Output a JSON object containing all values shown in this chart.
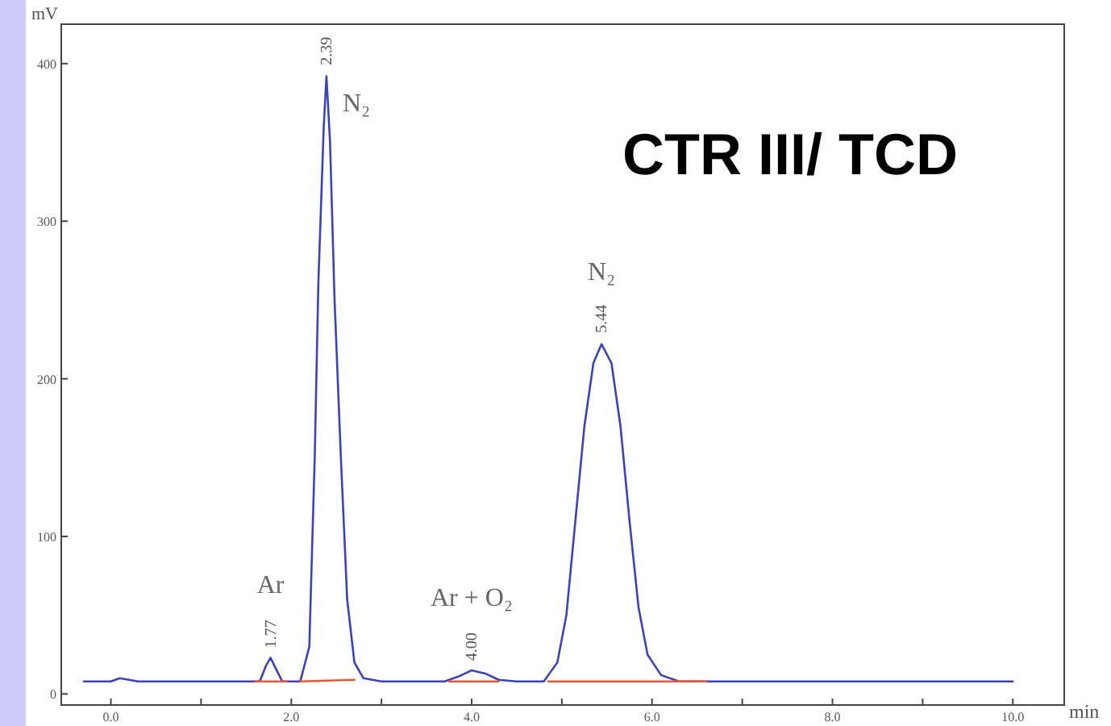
{
  "chart_data": {
    "type": "line",
    "title": "CTR III/ TCD",
    "xlabel": "min",
    "ylabel": "mV",
    "xlim": [
      -0.55,
      10.57
    ],
    "ylim": [
      -7,
      425
    ],
    "xticks": [
      {
        "value": 0,
        "label": "0.0"
      },
      {
        "value": 1,
        "label": null
      },
      {
        "value": 2,
        "label": "2.0"
      },
      {
        "value": 3,
        "label": null
      },
      {
        "value": 4,
        "label": "4.0"
      },
      {
        "value": 5,
        "label": null
      },
      {
        "value": 6,
        "label": "6.0"
      },
      {
        "value": 7,
        "label": null
      },
      {
        "value": 8,
        "label": "8.0"
      },
      {
        "value": 9,
        "label": null
      },
      {
        "value": 10,
        "label": "10.0"
      }
    ],
    "yticks": [
      0,
      100,
      200,
      300,
      400
    ],
    "grid": false,
    "marker": "none",
    "line_style": "solid",
    "series": [
      {
        "color": "#3a44b8",
        "x": [
          -0.3,
          0.0,
          0.1,
          0.2,
          0.3,
          1.5,
          1.65,
          1.72,
          1.77,
          1.83,
          1.9,
          2.1,
          2.2,
          2.26,
          2.3,
          2.36,
          2.39,
          2.43,
          2.48,
          2.55,
          2.62,
          2.7,
          2.8,
          2.9,
          3.0,
          3.7,
          3.85,
          4.0,
          4.15,
          4.3,
          4.5,
          4.8,
          4.95,
          5.05,
          5.15,
          5.25,
          5.35,
          5.44,
          5.55,
          5.65,
          5.75,
          5.85,
          5.95,
          6.1,
          6.3,
          7.0,
          10.0
        ],
        "values": [
          8,
          8,
          10,
          9,
          8,
          8,
          8,
          18,
          23,
          16,
          8,
          8,
          30,
          150,
          260,
          360,
          392,
          350,
          250,
          150,
          60,
          20,
          10,
          9,
          8,
          8,
          11,
          15,
          13,
          9,
          8,
          8,
          20,
          50,
          110,
          170,
          210,
          222,
          210,
          170,
          110,
          55,
          25,
          12,
          8,
          8,
          8
        ]
      },
      {
        "color": "#e05a3a",
        "x": [
          1.6,
          1.95,
          2.0,
          2.1,
          2.7,
          2.75,
          3.75,
          4.3,
          4.35,
          4.85,
          6.6
        ],
        "values": [
          8,
          8,
          null,
          8,
          9,
          null,
          8,
          8,
          null,
          8,
          8
        ]
      }
    ],
    "annotations": [
      {
        "text": "1.77",
        "x": 1.77,
        "y": 26
      },
      {
        "text": "2.39",
        "x": 2.39,
        "y": 396
      },
      {
        "text": "4.00",
        "x": 4.0,
        "y": 18
      },
      {
        "text": "5.44",
        "x": 5.44,
        "y": 226
      },
      {
        "text": "Ar",
        "x": 1.77,
        "y": 23
      },
      {
        "text": "N₂",
        "x": 2.39,
        "y": 392
      },
      {
        "text": "Ar + O₂",
        "x": 4.0,
        "y": 15
      },
      {
        "text": "N₂",
        "x": 5.44,
        "y": 222
      }
    ]
  }
}
